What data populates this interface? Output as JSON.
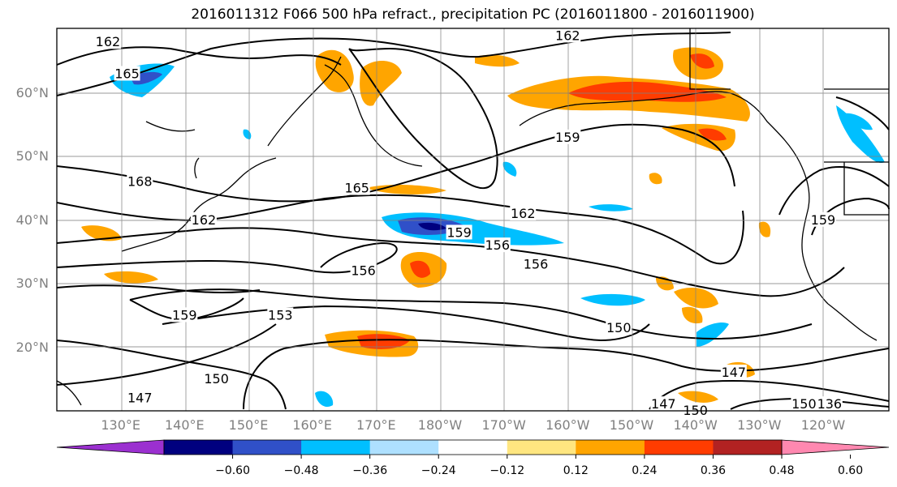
{
  "title": "2016011312 F066 500 hPa refract., precipitation PC (2016011800 - 2016011900)",
  "map": {
    "lat_labels": [
      "60°N",
      "50°N",
      "40°N",
      "30°N",
      "20°N"
    ],
    "lon_labels": [
      "130°E",
      "140°E",
      "150°E",
      "160°E",
      "170°E",
      "180°W",
      "170°W",
      "160°W",
      "150°W",
      "140°W",
      "130°W",
      "120°W"
    ],
    "contour_labels": [
      {
        "text": "162",
        "lon": 128,
        "lat": 68
      },
      {
        "text": "165",
        "lon": 131,
        "lat": 63
      },
      {
        "text": "162",
        "lon": 200,
        "lat": 69
      },
      {
        "text": "168",
        "lon": 133,
        "lat": 46
      },
      {
        "text": "165",
        "lon": 167,
        "lat": 45
      },
      {
        "text": "162",
        "lon": 143,
        "lat": 40
      },
      {
        "text": "162",
        "lon": 193,
        "lat": 41
      },
      {
        "text": "159",
        "lon": 200,
        "lat": 53
      },
      {
        "text": "159",
        "lon": 183,
        "lat": 38
      },
      {
        "text": "156",
        "lon": 189,
        "lat": 36
      },
      {
        "text": "156",
        "lon": 168,
        "lat": 32
      },
      {
        "text": "156",
        "lon": 195,
        "lat": 33
      },
      {
        "text": "159",
        "lon": 140,
        "lat": 25
      },
      {
        "text": "153",
        "lon": 155,
        "lat": 25
      },
      {
        "text": "150",
        "lon": 208,
        "lat": 23
      },
      {
        "text": "150",
        "lon": 145,
        "lat": 15
      },
      {
        "text": "147",
        "lon": 133,
        "lat": 12
      },
      {
        "text": "147",
        "lon": 226,
        "lat": 16
      },
      {
        "text": "159",
        "lon": 240,
        "lat": 40
      },
      {
        "text": "147",
        "lon": 215,
        "lat": 11
      },
      {
        "text": "150",
        "lon": 220,
        "lat": 10
      },
      {
        "text": "150",
        "lon": 237,
        "lat": 11
      },
      {
        "text": "136",
        "lon": 241,
        "lat": 11
      }
    ]
  },
  "colorbar": {
    "ticks": [
      "−0.60",
      "−0.48",
      "−0.36",
      "−0.24",
      "−0.12",
      "0.12",
      "0.24",
      "0.36",
      "0.48",
      "0.60"
    ],
    "colors": [
      "#9b30d0",
      "#00007f",
      "#3050c8",
      "#00bfff",
      "#aee0ff",
      "#ffffff",
      "#ffe680",
      "#ffa500",
      "#ff3c00",
      "#b22222",
      "#ff88b0"
    ]
  }
}
